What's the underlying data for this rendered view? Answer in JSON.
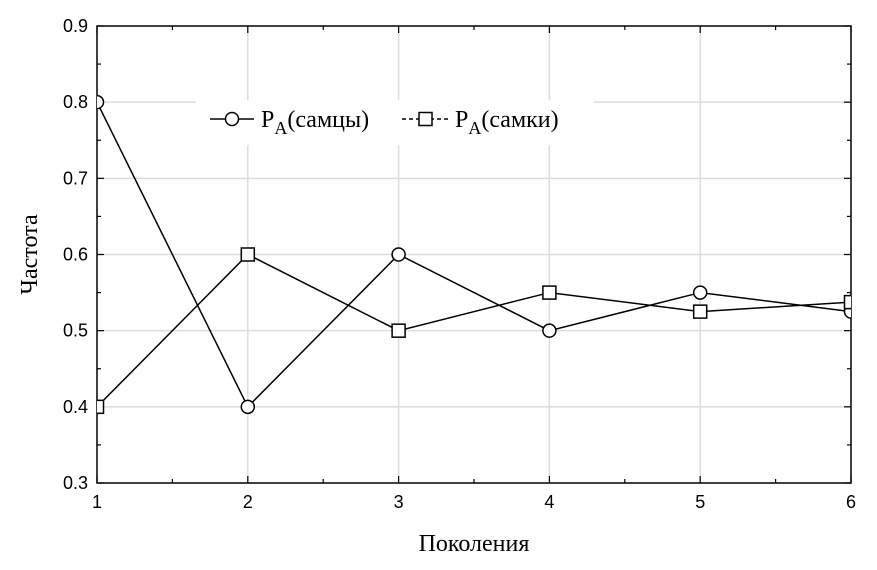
{
  "chart_data": {
    "type": "line",
    "xlabel": "Поколения",
    "ylabel": "Частота",
    "x": [
      1,
      2,
      3,
      4,
      5,
      6
    ],
    "xlim": [
      1,
      6
    ],
    "ylim": [
      0.3,
      0.9
    ],
    "xticks": [
      "1",
      "2",
      "3",
      "4",
      "5",
      "6"
    ],
    "yticks": [
      "0.3",
      "0.4",
      "0.5",
      "0.6",
      "0.7",
      "0.8",
      "0.9"
    ],
    "grid": true,
    "legend_position": "top",
    "series": [
      {
        "name": "PA(самцы)",
        "name_main": "P",
        "name_sub": "A",
        "name_rest": "(самцы)",
        "marker": "circle",
        "line": "solid",
        "values": [
          0.8,
          0.4,
          0.6,
          0.5,
          0.55,
          0.525
        ]
      },
      {
        "name": "PA(самки)",
        "name_main": "P",
        "name_sub": "A",
        "name_rest": "(самки)",
        "marker": "square",
        "line": "dashed",
        "values": [
          0.4,
          0.6,
          0.5,
          0.55,
          0.525,
          0.5375
        ]
      }
    ]
  }
}
